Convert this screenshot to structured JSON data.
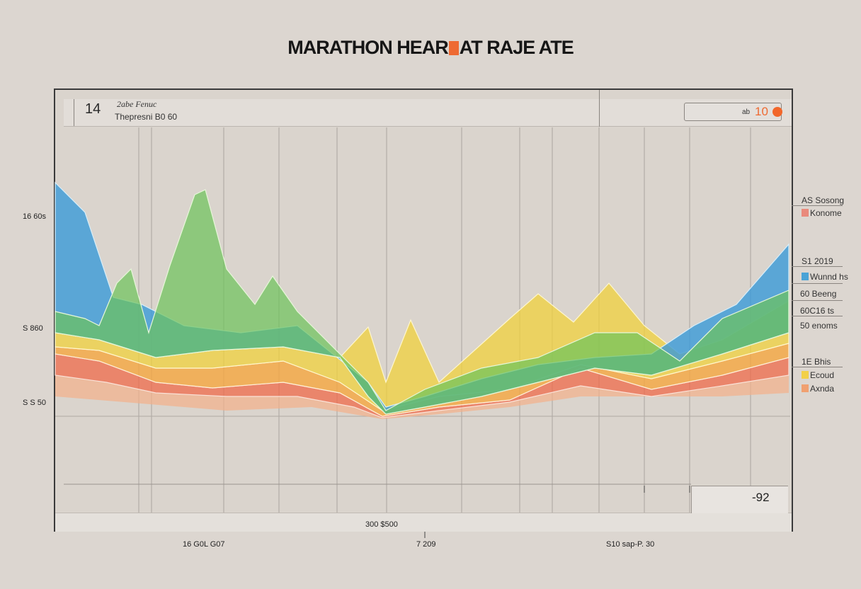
{
  "title": {
    "before": "MARATHON HEAR",
    "after": "AT RAJE ATE"
  },
  "header": {
    "big_number": "14",
    "line1": "2abe Fenuc",
    "line2": "Thepresni B0 60",
    "input_small": "ab",
    "input_value": "10"
  },
  "y_labels": [
    "16 60s",
    "S 860",
    "S S 50"
  ],
  "x_labels": [
    "16 G0L G07",
    "7 209",
    "S10 sap-P. 30"
  ],
  "footer_label": "300 $500",
  "corner_label": "-92",
  "legend": {
    "groups": [
      {
        "heading": "AS Sosong",
        "items": [
          {
            "label": "Konome",
            "color": "#e98a7c"
          }
        ]
      },
      {
        "heading": "S1 2019",
        "items": [
          {
            "label": "Wunnd hs",
            "color": "#4aa3d6"
          },
          {
            "label": "60 Beeng",
            "color": ""
          },
          {
            "label": "60C16 ts",
            "color": ""
          },
          {
            "label": "50 enoms",
            "color": ""
          }
        ]
      },
      {
        "heading": "1E Bhis",
        "items": [
          {
            "label": "Ecoud",
            "color": "#f2d04a"
          },
          {
            "label": "Axnda",
            "color": "#f0a070"
          }
        ]
      }
    ]
  },
  "colors": {
    "blue": "#3a9ad8",
    "green": "#6cc35a",
    "yellow": "#f0d23c",
    "orange": "#f5a640",
    "red": "#ef6b4a",
    "peach": "#f4b08a"
  }
}
